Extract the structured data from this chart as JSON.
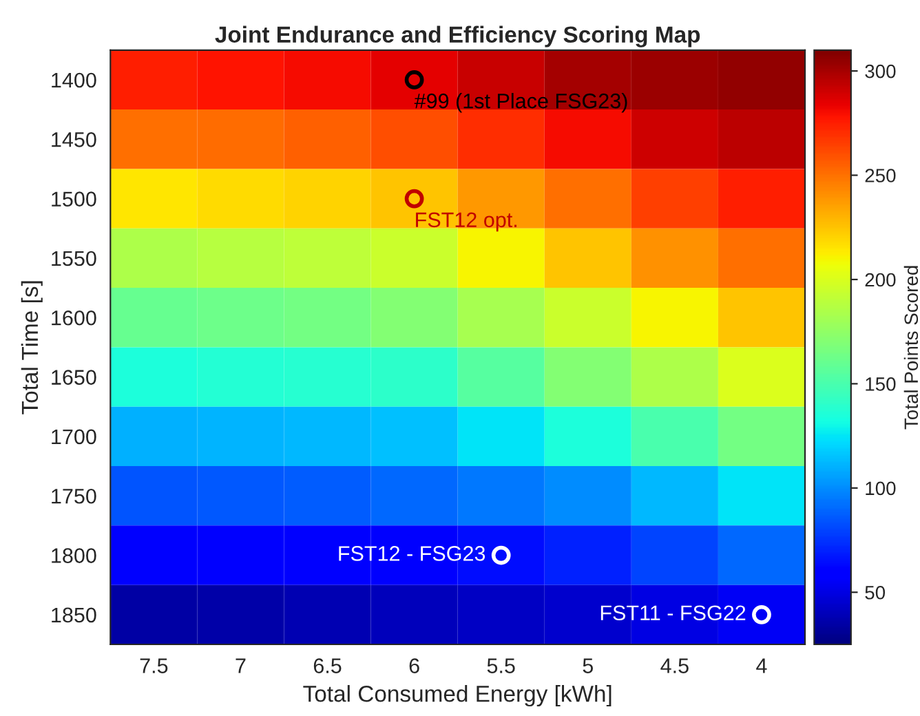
{
  "chart_data": {
    "type": "heatmap",
    "title": "Joint Endurance and Efficiency Scoring Map",
    "xlabel": "Total Consumed Energy [kWh]",
    "ylabel": "Total Time [s]",
    "clabel": "Total Points Scored",
    "categories": [
      "7.5",
      "7",
      "6.5",
      "6",
      "5.5",
      "5",
      "4.5",
      "4"
    ],
    "y_categories": [
      "1400",
      "1450",
      "1500",
      "1550",
      "1600",
      "1650",
      "1700",
      "1750",
      "1800",
      "1850"
    ],
    "cells": [
      [
        275,
        278,
        280,
        285,
        292,
        300,
        303,
        305
      ],
      [
        250,
        252,
        255,
        260,
        270,
        280,
        290,
        295
      ],
      [
        215,
        218,
        220,
        225,
        238,
        250,
        265,
        275
      ],
      [
        185,
        188,
        190,
        195,
        210,
        225,
        240,
        250
      ],
      [
        160,
        162,
        165,
        170,
        182,
        195,
        210,
        225
      ],
      [
        135,
        137,
        138,
        140,
        155,
        170,
        185,
        200
      ],
      [
        110,
        111,
        112,
        115,
        125,
        135,
        150,
        165
      ],
      [
        85,
        86,
        87,
        90,
        95,
        100,
        112,
        125
      ],
      [
        60,
        60,
        60,
        60,
        65,
        70,
        80,
        90
      ],
      [
        35,
        36,
        38,
        40,
        42,
        45,
        50,
        55
      ]
    ],
    "clim": [
      25,
      310
    ],
    "cticks": [
      50,
      100,
      150,
      200,
      250,
      300
    ],
    "annotations": [
      {
        "text": "#99 (1st Place FSG23)",
        "x": "6",
        "y": "1400"
      },
      {
        "text": "FST12 opt.",
        "x": "6",
        "y": "1500"
      },
      {
        "text": "FST12 - FSG23",
        "x": "5.5",
        "y": "1800"
      },
      {
        "text": "FST11 - FSG22",
        "x": "4",
        "y": "1850"
      }
    ]
  }
}
